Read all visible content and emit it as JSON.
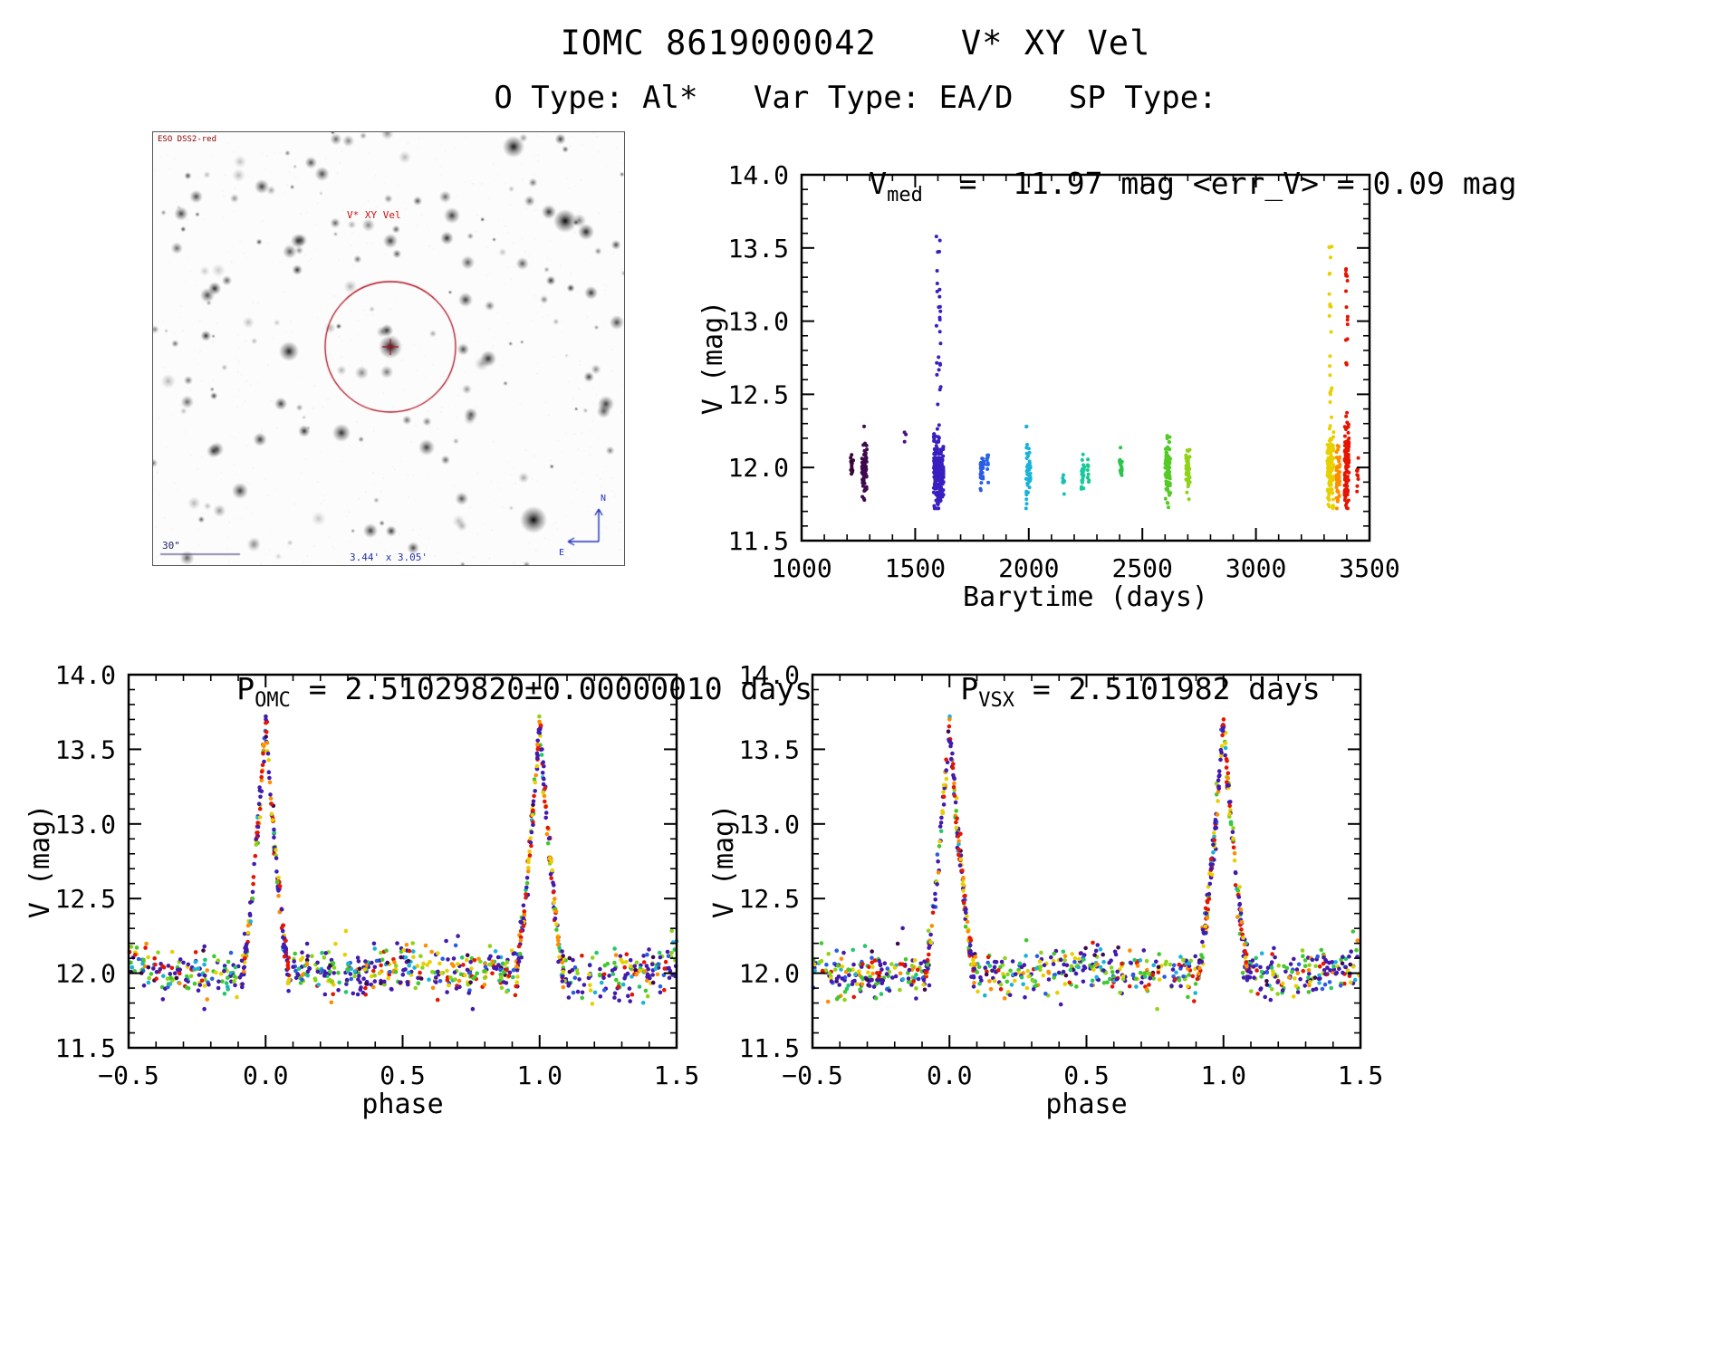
{
  "page": {
    "title": "IOMC 8619000042    V* XY Vel",
    "subtitle": "O Type: Al*   Var Type: EA/D   SP Type:"
  },
  "finder": {
    "survey_label": "ESO DSS2-red",
    "target_label": "V* XY Vel",
    "scale_label": "30\"",
    "fov_label": "3.44' x 3.05'",
    "compass_n": "N",
    "compass_e": "E",
    "circle_color": "#b01020"
  },
  "palette": [
    {
      "t": 0.0,
      "hex": "#38073a"
    },
    {
      "t": 0.08,
      "hex": "#50128f"
    },
    {
      "t": 0.16,
      "hex": "#3a1fbf"
    },
    {
      "t": 0.3,
      "hex": "#2b5ce6"
    },
    {
      "t": 0.4,
      "hex": "#19b3d9"
    },
    {
      "t": 0.5,
      "hex": "#16c9a0"
    },
    {
      "t": 0.6,
      "hex": "#2fc433"
    },
    {
      "t": 0.7,
      "hex": "#8ed316"
    },
    {
      "t": 0.82,
      "hex": "#e8d000"
    },
    {
      "t": 0.9,
      "hex": "#fe8d00"
    },
    {
      "t": 1.0,
      "hex": "#e51500"
    }
  ],
  "phase_color_weights": [
    {
      "ct": 0.13,
      "w": 0.3
    },
    {
      "ct": 0.02,
      "w": 0.05
    },
    {
      "ct": 0.3,
      "w": 0.06
    },
    {
      "ct": 0.4,
      "w": 0.07
    },
    {
      "ct": 0.55,
      "w": 0.06
    },
    {
      "ct": 0.62,
      "w": 0.12
    },
    {
      "ct": 0.7,
      "w": 0.09
    },
    {
      "ct": 0.82,
      "w": 0.1
    },
    {
      "ct": 0.9,
      "w": 0.07
    },
    {
      "ct": 1.0,
      "w": 0.08
    }
  ],
  "eclipse_color_weights": [
    {
      "ct": 0.13,
      "w": 0.28
    },
    {
      "ct": 0.16,
      "w": 0.08
    },
    {
      "ct": 0.62,
      "w": 0.06
    },
    {
      "ct": 0.82,
      "w": 0.18
    },
    {
      "ct": 0.9,
      "w": 0.1
    },
    {
      "ct": 1.0,
      "w": 0.3
    }
  ],
  "chart_data": [
    {
      "id": "ts",
      "type": "scatter",
      "title": "V_med = 11.97 mag <err_V> = 0.09 mag",
      "title_parts": {
        "base": "V",
        "sub": "med",
        "rest": "  =  11.97 mag <err_V> = 0.09 mag"
      },
      "median_v_mag": 11.97,
      "err_v_mag": 0.09,
      "xlabel": "Barytime (days)",
      "ylabel": "V (mag)",
      "xlim": [
        1000,
        3500
      ],
      "ylim": [
        14.0,
        11.5
      ],
      "grid": false,
      "legend": false,
      "xticks": {
        "values": [
          1000,
          1500,
          2000,
          2500,
          3000,
          3500
        ],
        "labels": [
          "1000",
          "1500",
          "2000",
          "2500",
          "3000",
          "3500"
        ]
      },
      "yticks": {
        "values": [
          11.5,
          12.0,
          12.5,
          13.0,
          13.5,
          14.0
        ],
        "labels": [
          "11.5",
          "12.0",
          "12.5",
          "13.0",
          "13.5",
          "14.0"
        ]
      },
      "clusters": [
        {
          "x": 1222,
          "xs": 6,
          "y": 12.0,
          "ys": 0.04,
          "n": 16,
          "ct": 0.0
        },
        {
          "x": 1276,
          "xs": 11,
          "y": 11.98,
          "ys": 0.09,
          "n": 75,
          "ct": 0.02
        },
        {
          "x": 1455,
          "xs": 5,
          "y": 12.22,
          "ys": 0.03,
          "n": 3,
          "ct": 0.07
        },
        {
          "x": 1603,
          "xs": 22,
          "y": 11.97,
          "ys": 0.1,
          "n": 260,
          "ct": 0.16,
          "tail": {
            "n": 28,
            "ymax": 13.68
          }
        },
        {
          "x": 1795,
          "xs": 8,
          "y": 12.0,
          "ys": 0.07,
          "n": 28,
          "ct": 0.3
        },
        {
          "x": 1818,
          "xs": 4,
          "y": 12.02,
          "ys": 0.05,
          "n": 10,
          "ct": 0.31
        },
        {
          "x": 1998,
          "xs": 10,
          "y": 11.97,
          "ys": 0.1,
          "n": 45,
          "ct": 0.4
        },
        {
          "x": 2152,
          "xs": 5,
          "y": 11.9,
          "ys": 0.04,
          "n": 8,
          "ct": 0.46
        },
        {
          "x": 2238,
          "xs": 8,
          "y": 11.95,
          "ys": 0.06,
          "n": 20,
          "ct": 0.5
        },
        {
          "x": 2262,
          "xs": 4,
          "y": 11.97,
          "ys": 0.05,
          "n": 8,
          "ct": 0.52
        },
        {
          "x": 2405,
          "xs": 6,
          "y": 11.98,
          "ys": 0.07,
          "n": 18,
          "ct": 0.58
        },
        {
          "x": 2612,
          "xs": 12,
          "y": 11.97,
          "ys": 0.11,
          "n": 80,
          "ct": 0.64
        },
        {
          "x": 2700,
          "xs": 9,
          "y": 11.97,
          "ys": 0.09,
          "n": 45,
          "ct": 0.7
        },
        {
          "x": 3328,
          "xs": 14,
          "y": 11.97,
          "ys": 0.12,
          "n": 110,
          "ct": 0.82,
          "tail": {
            "n": 22,
            "ymax": 13.6
          }
        },
        {
          "x": 3362,
          "xs": 8,
          "y": 11.95,
          "ys": 0.09,
          "n": 55,
          "ct": 0.9
        },
        {
          "x": 3400,
          "xs": 10,
          "y": 12.0,
          "ys": 0.13,
          "n": 95,
          "ct": 1.0,
          "tail": {
            "n": 18,
            "ymax": 13.52
          }
        },
        {
          "x": 3448,
          "xs": 4,
          "y": 11.97,
          "ys": 0.06,
          "n": 10,
          "ct": 1.0
        }
      ],
      "seed": 20101
    },
    {
      "id": "omc",
      "type": "scatter",
      "title": "P_OMC = 2.51029820±0.00000010 days",
      "title_parts": {
        "base": "P",
        "sub": "OMC",
        "rest": " = 2.51029820±0.00000010 days"
      },
      "period_days": 2.5102982,
      "period_err_days": 1e-07,
      "xlabel": "phase",
      "ylabel": "V (mag)",
      "xlim": [
        -0.5,
        1.5
      ],
      "ylim": [
        14.0,
        11.5
      ],
      "grid": false,
      "legend": false,
      "xticks": {
        "values": [
          -0.5,
          0.0,
          0.5,
          1.0,
          1.5
        ],
        "labels": [
          "−0.5",
          "0.0",
          "0.5",
          "1.0",
          "1.5"
        ]
      },
      "yticks": {
        "values": [
          11.5,
          12.0,
          12.5,
          13.0,
          13.5,
          14.0
        ],
        "labels": [
          "11.5",
          "12.0",
          "12.5",
          "13.0",
          "13.5",
          "14.0"
        ]
      },
      "model": {
        "baseline": 12.0,
        "noise": 0.075,
        "n_base": 780,
        "primary_depth": 1.66,
        "primary_width": 0.085,
        "primary_shape": 1.3,
        "secondary_depth": 0.1,
        "secondary_width": 0.09,
        "n_eclipse": 120,
        "eclipse_min_mag": 13.66
      },
      "seed": 911
    },
    {
      "id": "vsx",
      "type": "scatter",
      "title": "P_VSX = 2.5101982 days",
      "title_parts": {
        "base": "P",
        "sub": "VSX",
        "rest": " = 2.5101982 days"
      },
      "period_days": 2.5101982,
      "xlabel": "phase",
      "ylabel": "V (mag)",
      "xlim": [
        -0.5,
        1.5
      ],
      "ylim": [
        14.0,
        11.5
      ],
      "grid": false,
      "legend": false,
      "xticks": {
        "values": [
          -0.5,
          0.0,
          0.5,
          1.0,
          1.5
        ],
        "labels": [
          "−0.5",
          "0.0",
          "0.5",
          "1.0",
          "1.5"
        ]
      },
      "yticks": {
        "values": [
          11.5,
          12.0,
          12.5,
          13.0,
          13.5,
          14.0
        ],
        "labels": [
          "11.5",
          "12.0",
          "12.5",
          "13.0",
          "13.5",
          "14.0"
        ]
      },
      "model": {
        "baseline": 12.0,
        "noise": 0.075,
        "n_base": 780,
        "primary_depth": 1.66,
        "primary_width": 0.09,
        "primary_shape": 1.3,
        "secondary_depth": 0.1,
        "secondary_width": 0.09,
        "n_eclipse": 120,
        "eclipse_min_mag": 13.66
      },
      "seed": 412
    }
  ]
}
